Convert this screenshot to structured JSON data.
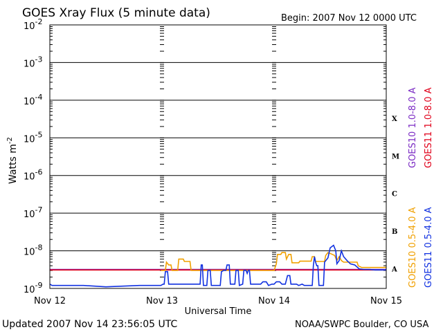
{
  "header": {
    "title": "GOES Xray Flux (5 minute data)",
    "begin": "Begin:  2007 Nov 12 0000 UTC"
  },
  "footer": {
    "updated": "Updated 2007 Nov 14 23:56:05 UTC",
    "source": "NOAA/SWPC Boulder, CO USA"
  },
  "colors": {
    "goes10_long": "#7b2bc4",
    "goes11_long": "#e0001a",
    "goes10_short": "#f0a000",
    "goes11_short": "#1030e0"
  },
  "chart_data": {
    "type": "line",
    "title": "GOES Xray Flux (5 minute data)",
    "xlabel": "Universal Time",
    "ylabel": "Watts m",
    "ylabel_sup": "-2",
    "y_scale": "log",
    "ylim": [
      1e-09,
      0.01
    ],
    "xlim": [
      0,
      3
    ],
    "x_ticks": [
      {
        "x": 0,
        "label": "Nov 12"
      },
      {
        "x": 1,
        "label": "Nov 13"
      },
      {
        "x": 2,
        "label": "Nov 14"
      },
      {
        "x": 3,
        "label": "Nov 15"
      }
    ],
    "y_ticks": [
      {
        "exp": -2,
        "label": "-2"
      },
      {
        "exp": -3,
        "label": "-3"
      },
      {
        "exp": -4,
        "label": "-4"
      },
      {
        "exp": -5,
        "label": "-5"
      },
      {
        "exp": -6,
        "label": "-6"
      },
      {
        "exp": -7,
        "label": "-7"
      },
      {
        "exp": -8,
        "label": "-8"
      },
      {
        "exp": -9,
        "label": "-9"
      }
    ],
    "flare_classes": [
      {
        "label": "X",
        "exp": -4
      },
      {
        "label": "M",
        "exp": -5
      },
      {
        "label": "C",
        "exp": -6
      },
      {
        "label": "B",
        "exp": -7
      },
      {
        "label": "A",
        "exp": -8
      }
    ],
    "legend_right": [
      {
        "text": "GOES10 1.0-8.0 A",
        "color": "#7b2bc4"
      },
      {
        "text": "GOES11 1.0-8.0 A",
        "color": "#e0001a"
      }
    ],
    "legend_right2": [
      {
        "text": "GOES10 0.5-4.0 A",
        "color": "#f0a000"
      },
      {
        "text": "GOES11 0.5-4.0 A",
        "color": "#1030e0"
      }
    ],
    "series": [
      {
        "name": "GOES10 1.0-8.0 A",
        "color": "#7b2bc4",
        "points": [
          [
            0,
            3.2e-09
          ],
          [
            3,
            3.2e-09
          ]
        ]
      },
      {
        "name": "GOES11 1.0-8.0 A",
        "color": "#e0001a",
        "points": [
          [
            0,
            3.1e-09
          ],
          [
            3,
            3.1e-09
          ]
        ]
      },
      {
        "name": "GOES10 0.5-4.0 A",
        "color": "#f0a000",
        "points": [
          [
            0.99,
            3e-09
          ],
          [
            1.03,
            3e-09
          ],
          [
            1.04,
            5e-09
          ],
          [
            1.06,
            4.2e-09
          ],
          [
            1.08,
            4.2e-09
          ],
          [
            1.09,
            3e-09
          ],
          [
            1.14,
            3e-09
          ],
          [
            1.15,
            6e-09
          ],
          [
            1.19,
            6e-09
          ],
          [
            1.2,
            5.2e-09
          ],
          [
            1.25,
            5.2e-09
          ],
          [
            1.26,
            3e-09
          ],
          [
            2.0,
            3e-09
          ],
          [
            2.02,
            4.5e-09
          ],
          [
            2.03,
            8e-09
          ],
          [
            2.06,
            8e-09
          ],
          [
            2.07,
            9e-09
          ],
          [
            2.1,
            9e-09
          ],
          [
            2.11,
            6e-09
          ],
          [
            2.13,
            8e-09
          ],
          [
            2.15,
            8e-09
          ],
          [
            2.16,
            4.8e-09
          ],
          [
            2.22,
            4.8e-09
          ],
          [
            2.23,
            5.3e-09
          ],
          [
            2.33,
            5.3e-09
          ],
          [
            2.34,
            7e-09
          ],
          [
            2.36,
            7e-09
          ],
          [
            2.37,
            5.2e-09
          ],
          [
            2.45,
            5.2e-09
          ],
          [
            2.46,
            7.5e-09
          ],
          [
            2.48,
            9e-09
          ],
          [
            2.52,
            8e-09
          ],
          [
            2.54,
            7.5e-09
          ],
          [
            2.56,
            5.5e-09
          ],
          [
            2.58,
            7e-09
          ],
          [
            2.6,
            5.5e-09
          ],
          [
            2.62,
            5e-09
          ],
          [
            2.7,
            5e-09
          ],
          [
            2.74,
            5e-09
          ],
          [
            2.75,
            4e-09
          ],
          [
            2.78,
            3.6e-09
          ],
          [
            2.82,
            3.6e-09
          ],
          [
            3.0,
            3.6e-09
          ]
        ]
      },
      {
        "name": "GOES11 0.5-4.0 A",
        "color": "#1030e0",
        "points": [
          [
            0,
            1.3e-09
          ],
          [
            0.02,
            1.2e-09
          ],
          [
            0.3,
            1.2e-09
          ],
          [
            0.5,
            1.1e-09
          ],
          [
            0.8,
            1.2e-09
          ],
          [
            0.99,
            1.2e-09
          ],
          [
            1.01,
            1.3e-09
          ],
          [
            1.02,
            1.3e-09
          ],
          [
            1.03,
            2.8e-09
          ],
          [
            1.05,
            2.8e-09
          ],
          [
            1.06,
            1.3e-09
          ],
          [
            1.34,
            1.3e-09
          ],
          [
            1.35,
            4.2e-09
          ],
          [
            1.36,
            4.2e-09
          ],
          [
            1.37,
            1.2e-09
          ],
          [
            1.4,
            1.2e-09
          ],
          [
            1.41,
            3e-09
          ],
          [
            1.43,
            3e-09
          ],
          [
            1.44,
            1.2e-09
          ],
          [
            1.52,
            1.2e-09
          ],
          [
            1.53,
            2.8e-09
          ],
          [
            1.55,
            3e-09
          ],
          [
            1.57,
            3e-09
          ],
          [
            1.58,
            4.2e-09
          ],
          [
            1.6,
            4.2e-09
          ],
          [
            1.61,
            1.3e-09
          ],
          [
            1.65,
            1.3e-09
          ],
          [
            1.66,
            3e-09
          ],
          [
            1.68,
            3e-09
          ],
          [
            1.69,
            1.2e-09
          ],
          [
            1.72,
            1.3e-09
          ],
          [
            1.73,
            3e-09
          ],
          [
            1.75,
            3e-09
          ],
          [
            1.76,
            2.5e-09
          ],
          [
            1.77,
            3e-09
          ],
          [
            1.78,
            3e-09
          ],
          [
            1.79,
            1.3e-09
          ],
          [
            1.85,
            1.3e-09
          ],
          [
            1.88,
            1.3e-09
          ],
          [
            1.9,
            1.5e-09
          ],
          [
            1.93,
            1.5e-09
          ],
          [
            1.95,
            1.2e-09
          ],
          [
            1.98,
            1.3e-09
          ],
          [
            2.0,
            1.3e-09
          ],
          [
            2.02,
            1.5e-09
          ],
          [
            2.05,
            1.5e-09
          ],
          [
            2.07,
            1.3e-09
          ],
          [
            2.1,
            1.3e-09
          ],
          [
            2.12,
            2.2e-09
          ],
          [
            2.14,
            2.2e-09
          ],
          [
            2.15,
            1.3e-09
          ],
          [
            2.2,
            1.3e-09
          ],
          [
            2.22,
            1.2e-09
          ],
          [
            2.25,
            1.3e-09
          ],
          [
            2.27,
            1.2e-09
          ],
          [
            2.34,
            1.2e-09
          ],
          [
            2.35,
            4e-09
          ],
          [
            2.36,
            7e-09
          ],
          [
            2.37,
            5e-09
          ],
          [
            2.38,
            4e-09
          ],
          [
            2.39,
            4e-09
          ],
          [
            2.4,
            1.2e-09
          ],
          [
            2.44,
            1.2e-09
          ],
          [
            2.45,
            5e-09
          ],
          [
            2.48,
            6.5e-09
          ],
          [
            2.5,
            1.2e-08
          ],
          [
            2.53,
            1.4e-08
          ],
          [
            2.55,
            1e-08
          ],
          [
            2.56,
            4.5e-09
          ],
          [
            2.58,
            5.5e-09
          ],
          [
            2.6,
            1e-08
          ],
          [
            2.62,
            7e-09
          ],
          [
            2.65,
            5.5e-09
          ],
          [
            2.68,
            4.5e-09
          ],
          [
            2.72,
            4.2e-09
          ],
          [
            2.76,
            3.3e-09
          ],
          [
            2.8,
            3.2e-09
          ],
          [
            2.85,
            3.2e-09
          ],
          [
            2.9,
            3.1e-09
          ],
          [
            3.0,
            3.1e-09
          ]
        ]
      }
    ]
  }
}
